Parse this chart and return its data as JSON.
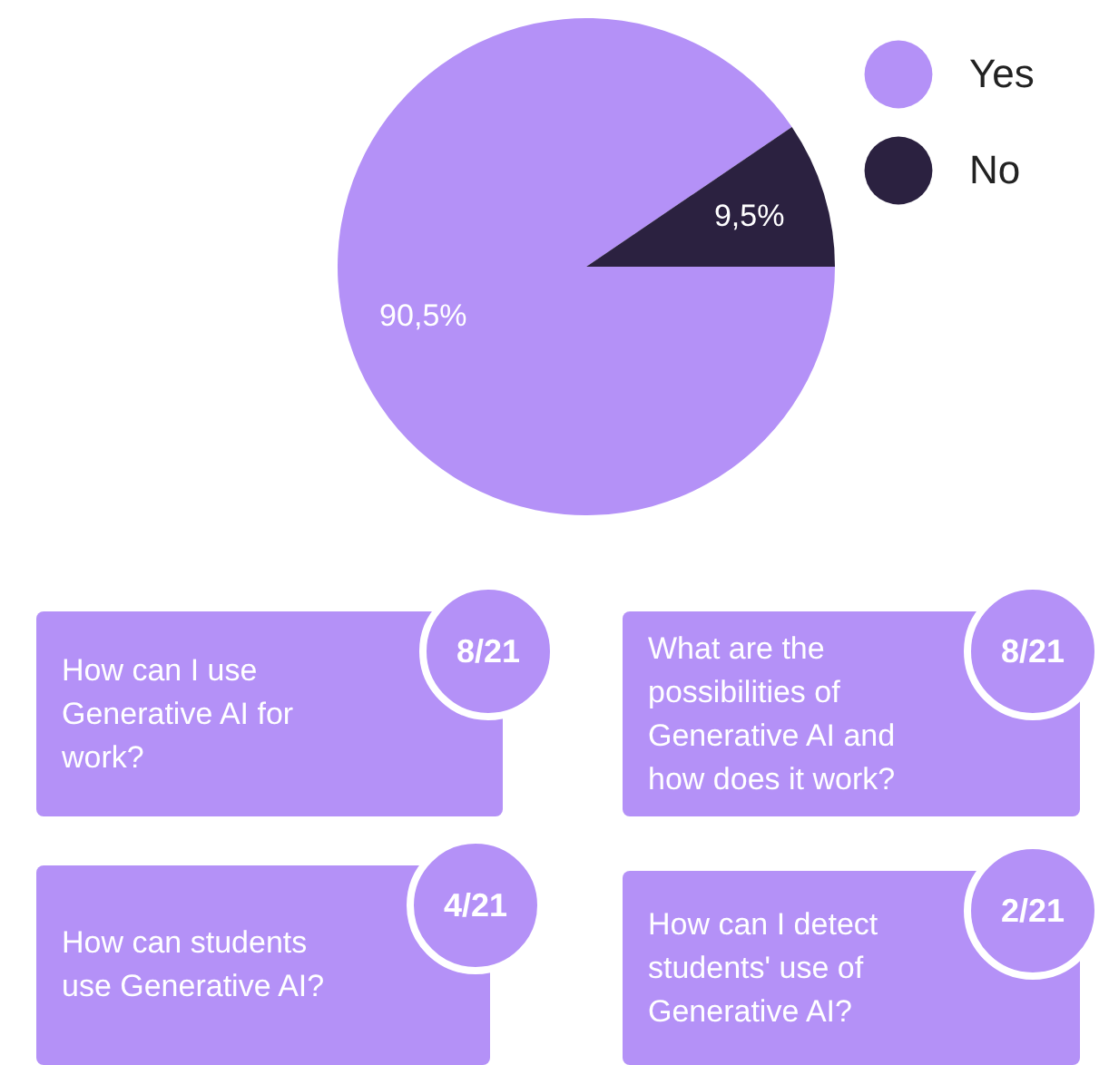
{
  "chart_data": [
    {
      "type": "pie",
      "categories": [
        "Yes",
        "No"
      ],
      "values": [
        90.5,
        9.5
      ],
      "colors": [
        "#b491f7",
        "#2b2140"
      ],
      "value_labels": [
        "90,5%",
        "9,5%"
      ],
      "legend": "top right"
    },
    {
      "type": "other",
      "annotations": [
        "How can I use Generative AI for work?",
        "8/21",
        "What are the possibilities of Generative AI and how does it work?",
        "8/21",
        "How can students use Generative AI?",
        "4/21",
        "How can I detect students' use of Generative AI?",
        "2/21"
      ]
    }
  ]
}
